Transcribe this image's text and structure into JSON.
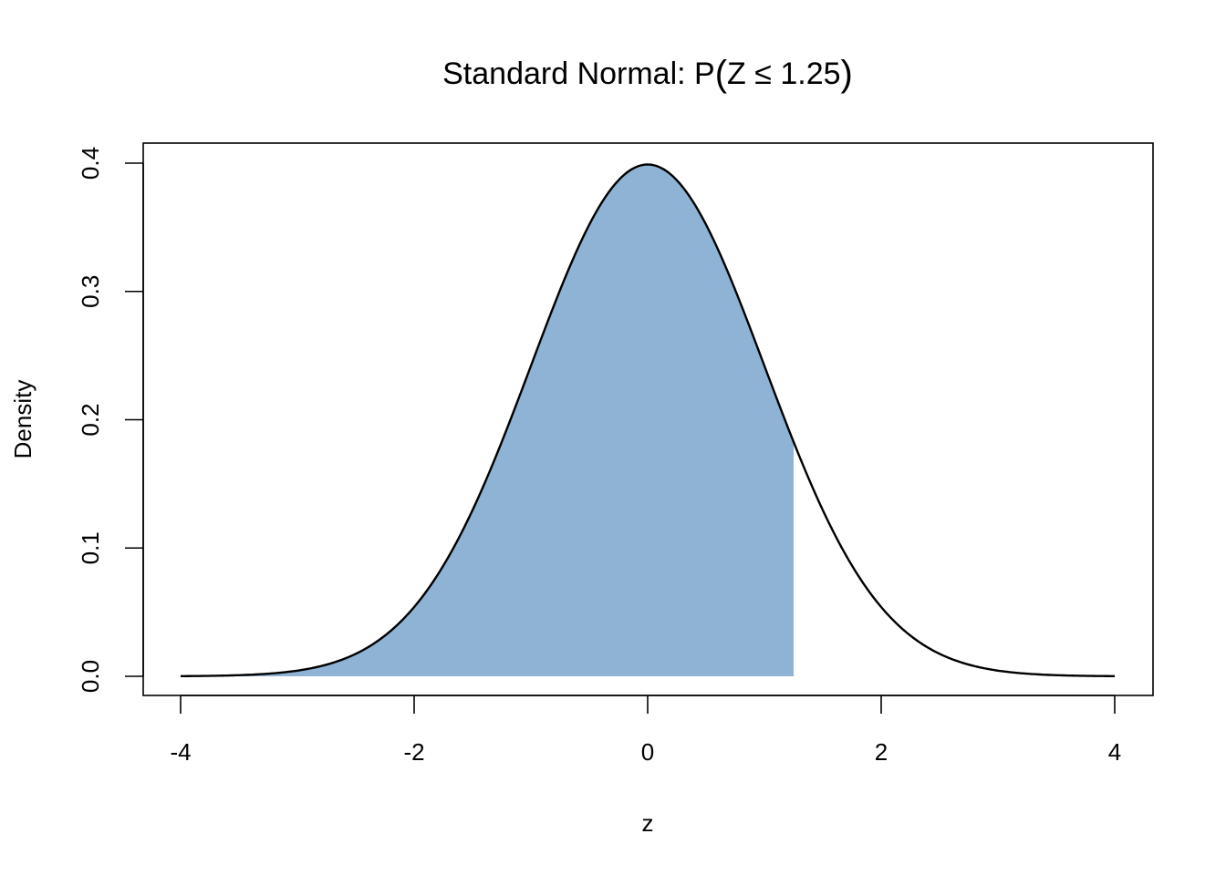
{
  "chart_data": {
    "type": "area",
    "title": "Standard Normal:  P(Z ≤ 1.25)",
    "title_parts": {
      "prefix": "Standard Normal:  P",
      "open_paren": "(",
      "inner": "Z ≤ 1.25",
      "close_paren": ")"
    },
    "xlabel": "z",
    "ylabel": "Density",
    "xlim": [
      -4,
      4
    ],
    "ylim": [
      0,
      0.4
    ],
    "x_ticks": [
      -4,
      -2,
      0,
      2,
      4
    ],
    "x_tick_labels": [
      "-4",
      "-2",
      "0",
      "2",
      "4"
    ],
    "y_ticks": [
      0,
      0.1,
      0.2,
      0.3,
      0.4
    ],
    "y_tick_labels": [
      "0.0",
      "0.1",
      "0.2",
      "0.3",
      "0.4"
    ],
    "curve": {
      "distribution": "standard normal density",
      "mean": 0,
      "sd": 1,
      "x_range": [
        -4,
        4
      ],
      "color": "#000000"
    },
    "shaded_region": {
      "from": -4,
      "to": 1.25,
      "fill": "#8fb3d5"
    },
    "grid": false,
    "legend": "none"
  }
}
